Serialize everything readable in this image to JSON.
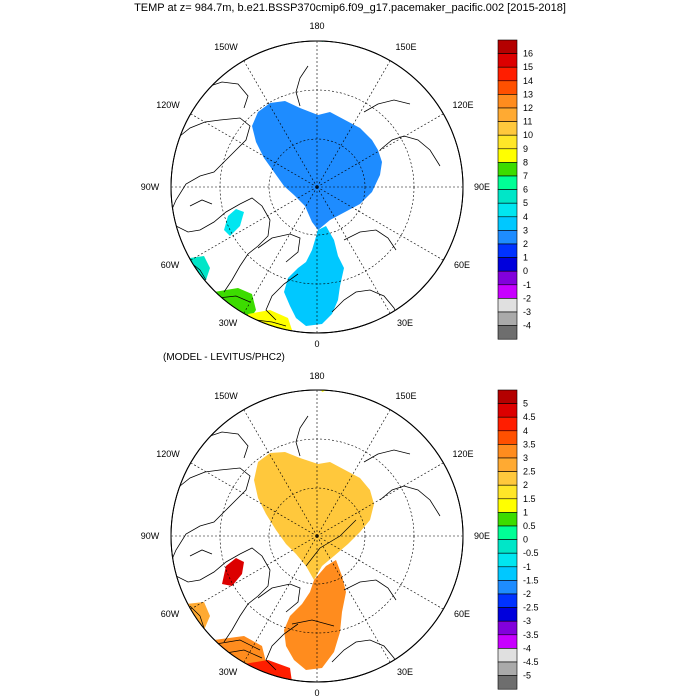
{
  "title": "TEMP at z= 984.7m, b.e21.BSSP370cmip6.f09_g17.pacemaker_pacific.002 [2015-2018]",
  "diff_title": "(MODEL - LEVITUS/PHC2)",
  "lon_labels": {
    "lon180": "180",
    "lon150w": "150W",
    "lon150e": "150E",
    "lon120w": "120W",
    "lon120e": "120E",
    "lon90w": "90W",
    "lon90e": "90E",
    "lon60w": "60W",
    "lon60e": "60E",
    "lon30w": "30W",
    "lon30e": "30E",
    "lon0": "0"
  },
  "top_colorbar": {
    "levels": [
      "16",
      "15",
      "14",
      "13",
      "12",
      "11",
      "10",
      "9",
      "8",
      "7",
      "6",
      "5",
      "4",
      "3",
      "2",
      "1",
      "0",
      "-1",
      "-2",
      "-3",
      "-4"
    ],
    "colors": [
      "#b40000",
      "#dc0000",
      "#ff1e00",
      "#ff5000",
      "#ff8c1e",
      "#ffaa32",
      "#ffc83c",
      "#ffe628",
      "#ffff00",
      "#3cdc00",
      "#00ff96",
      "#00e6c8",
      "#00e6f0",
      "#00c8ff",
      "#1e8cff",
      "#0032ff",
      "#0000dc",
      "#8200dc",
      "#c800ff",
      "#e0e0e0",
      "#aaaaaa",
      "#6e6e6e"
    ]
  },
  "bottom_colorbar": {
    "levels": [
      "5",
      "4.5",
      "4",
      "3.5",
      "3",
      "2.5",
      "2",
      "1.5",
      "1",
      "0.5",
      "0",
      "-0.5",
      "-1",
      "-1.5",
      "-2",
      "-2.5",
      "-3",
      "-3.5",
      "-4",
      "-4.5",
      "-5"
    ],
    "colors": [
      "#b40000",
      "#dc0000",
      "#ff1e00",
      "#ff5000",
      "#ff8c1e",
      "#ffaa32",
      "#ffc83c",
      "#ffe628",
      "#ffff00",
      "#3cdc00",
      "#00ff96",
      "#00e6c8",
      "#00e6f0",
      "#00c8ff",
      "#1e8cff",
      "#0032ff",
      "#0000dc",
      "#8200dc",
      "#c800ff",
      "#e0e0e0",
      "#aaaaaa",
      "#6e6e6e"
    ]
  }
}
